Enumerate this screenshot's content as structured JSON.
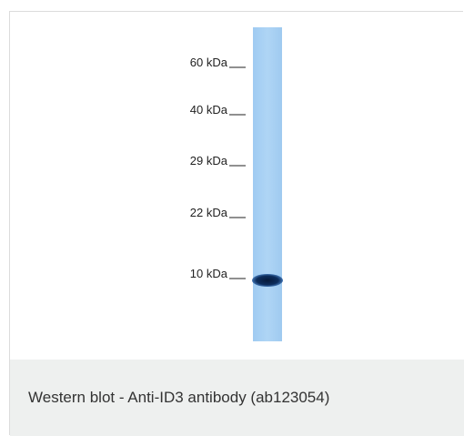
{
  "figure": {
    "markers": [
      "60 kDa",
      "40 kDa",
      "29 kDa",
      "22 kDa",
      "10 kDa"
    ],
    "caption": "Western blot - Anti-ID3 antibody (ab123054)"
  }
}
